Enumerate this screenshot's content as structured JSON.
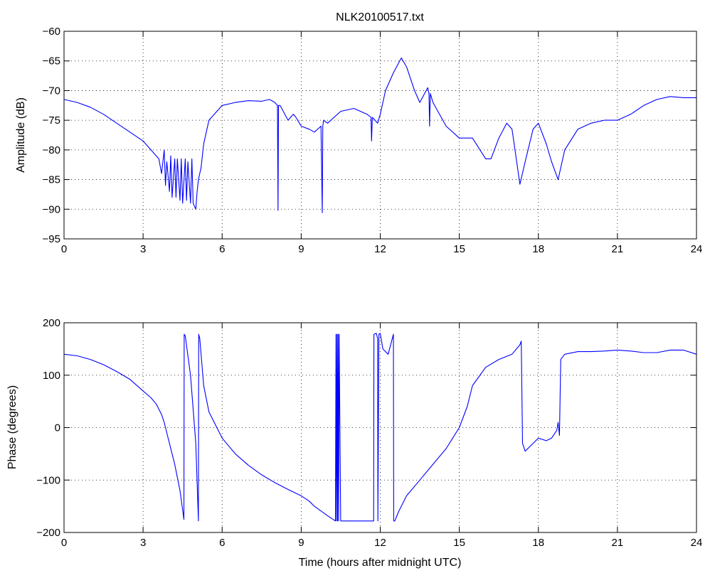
{
  "chart_data": [
    {
      "type": "line",
      "title": "NLK20100517.txt",
      "xlabel": "",
      "ylabel": "Amplitude (dB)",
      "xlim": [
        0,
        24
      ],
      "ylim": [
        -95,
        -60
      ],
      "xticks": [
        "0",
        "3",
        "6",
        "9",
        "12",
        "15",
        "18",
        "21",
        "24"
      ],
      "yticks": [
        "−95",
        "−90",
        "−85",
        "−80",
        "−75",
        "−70",
        "−65",
        "−60"
      ],
      "grid": true,
      "color": "#0000ff",
      "series": [
        {
          "x": [
            0,
            0.5,
            1,
            1.5,
            2,
            2.5,
            3,
            3.3,
            3.5,
            3.6,
            3.7,
            3.8,
            3.85,
            3.9,
            4.0,
            4.05,
            4.1,
            4.2,
            4.25,
            4.3,
            4.4,
            4.45,
            4.5,
            4.6,
            4.65,
            4.7,
            4.8,
            4.85,
            4.9,
            5.0,
            5.05,
            5.1,
            5.2,
            5.3,
            5.5,
            6.0,
            6.5,
            7.0,
            7.5,
            7.8,
            8.0,
            8.1,
            8.12,
            8.14,
            8.2,
            8.5,
            8.7,
            8.8,
            9.0,
            9.3,
            9.5,
            9.75,
            9.8,
            9.82,
            9.85,
            10.0,
            10.5,
            11.0,
            11.5,
            11.65,
            11.67,
            11.7,
            11.9,
            12.0,
            12.2,
            12.5,
            12.8,
            13.0,
            13.3,
            13.5,
            13.8,
            13.85,
            13.87,
            13.9,
            14.0,
            14.5,
            15.0,
            15.5,
            16.0,
            16.2,
            16.5,
            16.8,
            17.0,
            17.3,
            17.5,
            17.8,
            18.0,
            18.3,
            18.5,
            18.75,
            19.0,
            19.5,
            20.0,
            20.5,
            21.0,
            21.5,
            22.0,
            22.5,
            23.0,
            23.5,
            24.0
          ],
          "y": [
            -71.5,
            -72,
            -72.8,
            -74,
            -75.5,
            -77,
            -78.5,
            -80,
            -81,
            -81.5,
            -84,
            -80,
            -86,
            -82,
            -87,
            -81,
            -88,
            -81.5,
            -88,
            -81.5,
            -88.5,
            -81.5,
            -89,
            -81.5,
            -88.5,
            -82,
            -89,
            -81.5,
            -89,
            -90,
            -87,
            -85,
            -83,
            -79,
            -75,
            -72.5,
            -72,
            -71.7,
            -71.8,
            -71.5,
            -72,
            -72.5,
            -90.2,
            -72.5,
            -72.5,
            -75,
            -74,
            -74.5,
            -76,
            -76.5,
            -77,
            -76,
            -90.6,
            -76,
            -75,
            -75.5,
            -73.5,
            -73,
            -74,
            -74.5,
            -78.5,
            -74.5,
            -75.5,
            -74,
            -70,
            -67,
            -64.5,
            -66,
            -70,
            -72,
            -69.5,
            -70.5,
            -76,
            -70.5,
            -72,
            -76,
            -78,
            -78,
            -81.5,
            -81.5,
            -78,
            -75.5,
            -76.5,
            -85.8,
            -82,
            -76.5,
            -75.5,
            -79,
            -82,
            -85,
            -80,
            -76.5,
            -75.5,
            -75,
            -75,
            -74,
            -72.5,
            -71.5,
            -71,
            -71.2,
            -71.2
          ]
        }
      ]
    },
    {
      "type": "line",
      "title": "",
      "xlabel": "Time (hours after midnight UTC)",
      "ylabel": "Phase (degrees)",
      "xlim": [
        0,
        24
      ],
      "ylim": [
        -200,
        200
      ],
      "xticks": [
        "0",
        "3",
        "6",
        "9",
        "12",
        "15",
        "18",
        "21",
        "24"
      ],
      "yticks": [
        "−200",
        "−100",
        "0",
        "100",
        "200"
      ],
      "grid": true,
      "color": "#0000ff",
      "series": [
        {
          "x": [
            0,
            0.5,
            1,
            1.5,
            2,
            2.5,
            3,
            3.3,
            3.5,
            3.7,
            3.8,
            4.0,
            4.2,
            4.4,
            4.55,
            4.56,
            4.6,
            4.8,
            5.0,
            5.1,
            5.11,
            5.15,
            5.3,
            5.5,
            6.0,
            6.5,
            7.0,
            7.5,
            8.0,
            8.5,
            9.0,
            9.3,
            9.5,
            10.0,
            10.3,
            10.32,
            10.34,
            10.36,
            10.38,
            10.4,
            10.42,
            10.44,
            10.5,
            11.0,
            11.5,
            11.75,
            11.76,
            11.85,
            11.9,
            11.91,
            11.95,
            12.0,
            12.1,
            12.3,
            12.5,
            12.51,
            12.55,
            12.7,
            13.0,
            13.5,
            14.0,
            14.5,
            15.0,
            15.3,
            15.5,
            16.0,
            16.5,
            17.0,
            17.3,
            17.35,
            17.4,
            17.5,
            17.8,
            18.0,
            18.3,
            18.5,
            18.7,
            18.75,
            18.8,
            18.85,
            19.0,
            19.5,
            20.0,
            20.5,
            21.0,
            21.5,
            22.0,
            22.5,
            23.0,
            23.5,
            24.0
          ],
          "y": [
            140,
            137,
            130,
            120,
            107,
            92,
            70,
            57,
            45,
            25,
            10,
            -30,
            -70,
            -120,
            -175,
            178,
            175,
            100,
            -30,
            -178,
            178,
            170,
            80,
            30,
            -20,
            -50,
            -72,
            -90,
            -105,
            -118,
            -130,
            -140,
            -150,
            -168,
            -178,
            178,
            -178,
            178,
            -178,
            178,
            -178,
            178,
            -178,
            -178,
            -178,
            -178,
            178,
            180,
            170,
            -178,
            178,
            180,
            150,
            140,
            178,
            -178,
            -178,
            -160,
            -130,
            -100,
            -70,
            -40,
            0,
            40,
            80,
            115,
            130,
            140,
            158,
            165,
            -30,
            -45,
            -30,
            -20,
            -25,
            -20,
            -5,
            10,
            -15,
            130,
            140,
            145,
            145,
            146,
            148,
            146,
            143,
            143,
            148,
            148,
            140
          ]
        }
      ]
    }
  ]
}
